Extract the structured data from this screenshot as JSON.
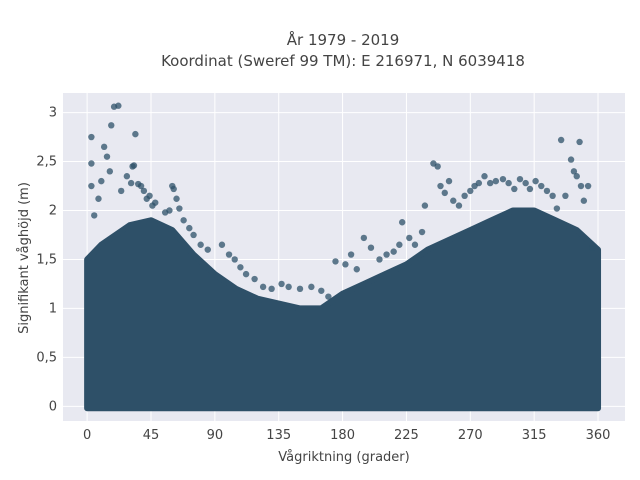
{
  "chart_data": {
    "type": "scatter",
    "title": "År 1979 - 2019",
    "subtitle": "Koordinat (Sweref 99 TM): E 216971, N 6039418",
    "xlabel": "Vågriktning (grader)",
    "ylabel": "Signifikant våghöjd (m)",
    "xlim": [
      -17,
      379
    ],
    "ylim": [
      -0.15,
      3.2
    ],
    "x_ticks": [
      0,
      45,
      90,
      135,
      180,
      225,
      270,
      315,
      360
    ],
    "y_ticks": [
      0,
      0.5,
      1,
      1.5,
      2,
      2.5,
      3
    ],
    "y_tick_labels": [
      "0",
      "0,5",
      "1",
      "1,5",
      "2",
      "2,5",
      "3"
    ],
    "grid": true,
    "marker_color": "#2e5068",
    "marker_opacity": 0.75,
    "plot_background": "#e8e9f1",
    "envelope": [
      [
        0,
        1.5
      ],
      [
        10,
        1.65
      ],
      [
        20,
        1.75
      ],
      [
        30,
        1.85
      ],
      [
        45,
        1.9
      ],
      [
        60,
        1.8
      ],
      [
        75,
        1.55
      ],
      [
        90,
        1.35
      ],
      [
        105,
        1.2
      ],
      [
        120,
        1.1
      ],
      [
        135,
        1.05
      ],
      [
        150,
        1.0
      ],
      [
        165,
        1.0
      ],
      [
        180,
        1.15
      ],
      [
        195,
        1.25
      ],
      [
        210,
        1.35
      ],
      [
        225,
        1.45
      ],
      [
        240,
        1.6
      ],
      [
        255,
        1.7
      ],
      [
        270,
        1.8
      ],
      [
        285,
        1.9
      ],
      [
        300,
        2.0
      ],
      [
        315,
        2.0
      ],
      [
        330,
        1.9
      ],
      [
        345,
        1.8
      ],
      [
        360,
        1.6
      ]
    ],
    "outliers": [
      [
        3,
        2.75
      ],
      [
        3,
        2.48
      ],
      [
        3,
        2.25
      ],
      [
        5,
        1.95
      ],
      [
        8,
        2.12
      ],
      [
        10,
        2.3
      ],
      [
        12,
        2.65
      ],
      [
        14,
        2.55
      ],
      [
        16,
        2.4
      ],
      [
        17,
        2.87
      ],
      [
        19,
        3.06
      ],
      [
        22,
        3.07
      ],
      [
        24,
        2.2
      ],
      [
        28,
        2.35
      ],
      [
        31,
        2.28
      ],
      [
        32,
        2.45
      ],
      [
        33,
        2.46
      ],
      [
        34,
        2.78
      ],
      [
        36,
        2.27
      ],
      [
        38,
        2.25
      ],
      [
        40,
        2.2
      ],
      [
        42,
        2.12
      ],
      [
        44,
        2.15
      ],
      [
        46,
        2.05
      ],
      [
        48,
        2.08
      ],
      [
        55,
        1.98
      ],
      [
        58,
        2.0
      ],
      [
        60,
        2.25
      ],
      [
        61,
        2.22
      ],
      [
        63,
        2.12
      ],
      [
        65,
        2.02
      ],
      [
        68,
        1.9
      ],
      [
        72,
        1.82
      ],
      [
        75,
        1.75
      ],
      [
        80,
        1.65
      ],
      [
        85,
        1.6
      ],
      [
        95,
        1.65
      ],
      [
        100,
        1.55
      ],
      [
        104,
        1.5
      ],
      [
        108,
        1.42
      ],
      [
        112,
        1.35
      ],
      [
        118,
        1.3
      ],
      [
        124,
        1.22
      ],
      [
        130,
        1.2
      ],
      [
        137,
        1.25
      ],
      [
        142,
        1.22
      ],
      [
        150,
        1.2
      ],
      [
        158,
        1.22
      ],
      [
        165,
        1.18
      ],
      [
        170,
        1.12
      ],
      [
        175,
        1.48
      ],
      [
        182,
        1.45
      ],
      [
        186,
        1.55
      ],
      [
        190,
        1.4
      ],
      [
        195,
        1.72
      ],
      [
        200,
        1.62
      ],
      [
        206,
        1.5
      ],
      [
        211,
        1.55
      ],
      [
        216,
        1.58
      ],
      [
        220,
        1.65
      ],
      [
        222,
        1.88
      ],
      [
        227,
        1.72
      ],
      [
        231,
        1.65
      ],
      [
        236,
        1.78
      ],
      [
        238,
        2.05
      ],
      [
        244,
        2.48
      ],
      [
        247,
        2.45
      ],
      [
        249,
        2.25
      ],
      [
        252,
        2.18
      ],
      [
        255,
        2.3
      ],
      [
        258,
        2.1
      ],
      [
        262,
        2.05
      ],
      [
        266,
        2.15
      ],
      [
        270,
        2.2
      ],
      [
        273,
        2.25
      ],
      [
        276,
        2.28
      ],
      [
        280,
        2.35
      ],
      [
        284,
        2.28
      ],
      [
        288,
        2.3
      ],
      [
        293,
        2.32
      ],
      [
        297,
        2.28
      ],
      [
        301,
        2.22
      ],
      [
        305,
        2.32
      ],
      [
        309,
        2.28
      ],
      [
        312,
        2.22
      ],
      [
        316,
        2.3
      ],
      [
        320,
        2.25
      ],
      [
        324,
        2.2
      ],
      [
        328,
        2.15
      ],
      [
        331,
        2.02
      ],
      [
        334,
        2.72
      ],
      [
        337,
        2.15
      ],
      [
        341,
        2.52
      ],
      [
        343,
        2.4
      ],
      [
        345,
        2.35
      ],
      [
        347,
        2.7
      ],
      [
        348,
        2.25
      ],
      [
        350,
        2.1
      ],
      [
        353,
        2.25
      ],
      [
        356,
        1.62
      ]
    ]
  }
}
